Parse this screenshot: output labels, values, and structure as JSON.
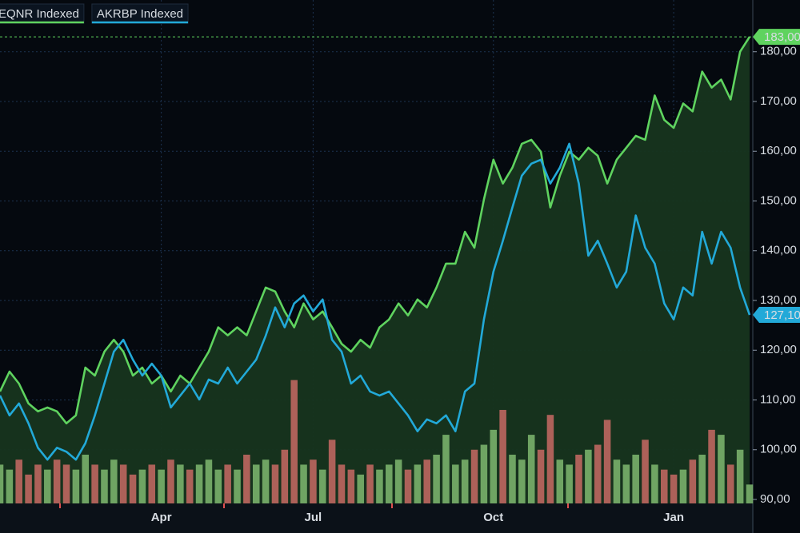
{
  "chart_data": {
    "type": "line",
    "categories": [
      null,
      null,
      null,
      null,
      null,
      null,
      null,
      null,
      null,
      null,
      null,
      null,
      null,
      null,
      null,
      null,
      null,
      "Apr",
      null,
      null,
      null,
      null,
      null,
      null,
      null,
      null,
      null,
      null,
      null,
      null,
      null,
      null,
      null,
      "Jul",
      null,
      null,
      null,
      null,
      null,
      null,
      null,
      null,
      null,
      null,
      null,
      null,
      null,
      null,
      null,
      null,
      null,
      null,
      "Oct",
      null,
      null,
      null,
      null,
      null,
      null,
      null,
      null,
      null,
      null,
      null,
      null,
      null,
      null,
      null,
      null,
      null,
      null,
      "Jan",
      null,
      null,
      null,
      null,
      null,
      null,
      null,
      null
    ],
    "series": [
      {
        "name": "EQNR  Indexed",
        "color": "#5fd35f",
        "fill": "#17351f",
        "values": [
          111.7,
          115.7,
          113.3,
          109.3,
          107.7,
          108.5,
          107.7,
          105.3,
          106.9,
          116.5,
          114.9,
          119.7,
          122.1,
          119.7,
          114.9,
          116.5,
          113.3,
          114.9,
          111.7,
          114.9,
          113.3,
          116.5,
          119.7,
          124.6,
          123.0,
          124.6,
          123.0,
          127.8,
          132.6,
          131.8,
          127.8,
          124.6,
          129.4,
          126.2,
          127.8,
          124.6,
          121.3,
          119.7,
          122.1,
          120.5,
          124.6,
          126.2,
          129.4,
          127.0,
          130.2,
          128.6,
          132.6,
          137.4,
          137.4,
          143.8,
          140.6,
          150.3,
          158.3,
          153.5,
          156.7,
          161.5,
          162.3,
          159.9,
          148.7,
          155.1,
          159.9,
          158.3,
          160.7,
          159.1,
          153.5,
          158.3,
          160.7,
          163.1,
          162.3,
          171.2,
          166.3,
          164.7,
          169.6,
          168.0,
          176.0,
          172.8,
          174.4,
          170.4,
          180.0,
          183
        ],
        "last_label": "183,00"
      },
      {
        "name": "AKRBP Indexed",
        "color": "#22a9d8",
        "values": [
          110.9,
          106.9,
          109.3,
          105.3,
          100.4,
          98.0,
          100.4,
          99.6,
          98.0,
          101.3,
          106.9,
          113.3,
          119.7,
          122.1,
          118.1,
          114.9,
          117.3,
          114.9,
          108.5,
          110.9,
          113.3,
          110.1,
          114.1,
          113.3,
          116.5,
          113.3,
          115.7,
          118.1,
          122.9,
          128.6,
          124.6,
          129.4,
          131.0,
          127.8,
          130.2,
          122.1,
          119.7,
          113.3,
          114.9,
          111.7,
          110.9,
          111.7,
          109.3,
          106.9,
          103.7,
          106.1,
          105.3,
          106.9,
          103.7,
          111.7,
          113.3,
          126.2,
          135.8,
          142.0,
          148.7,
          155.1,
          157.5,
          158.3,
          153.5,
          156.7,
          161.5,
          153.5,
          139.0,
          142.0,
          137.4,
          132.6,
          135.8,
          147.1,
          140.6,
          137.4,
          129.4,
          126.2,
          132.6,
          131.0,
          143.8,
          137.4,
          143.8,
          140.6,
          132.6,
          127.1
        ],
        "last_label": "127,10"
      }
    ],
    "volume": {
      "up_color": "#7fb870",
      "down_color": "#c86a64",
      "values": [
        97,
        96,
        98,
        95,
        97,
        96,
        98,
        97,
        96,
        99,
        97,
        96,
        98,
        97,
        95,
        96,
        97,
        96,
        98,
        97,
        96,
        97,
        98,
        96,
        97,
        96,
        99,
        97,
        98,
        97,
        100,
        114,
        97,
        98,
        96,
        102,
        97,
        96,
        95,
        97,
        96,
        97,
        98,
        96,
        97,
        98,
        99,
        103,
        97,
        98,
        100,
        101,
        104,
        108,
        99,
        98,
        103,
        100,
        107,
        98,
        97,
        99,
        100,
        101,
        106,
        98,
        97,
        99,
        102,
        97,
        96,
        95,
        96,
        98,
        99,
        104,
        103,
        97,
        100,
        93
      ]
    },
    "ylim": [
      89.2,
      190.4
    ],
    "yticks": [
      {
        "value": 90,
        "label": "90,00"
      },
      {
        "value": 100,
        "label": "100,00"
      },
      {
        "value": 110,
        "label": "110,00"
      },
      {
        "value": 120,
        "label": "120,00"
      },
      {
        "value": 130,
        "label": "130,00"
      },
      {
        "value": 140,
        "label": "140,00"
      },
      {
        "value": 150,
        "label": "150,00"
      },
      {
        "value": 160,
        "label": "160,00"
      },
      {
        "value": 170,
        "label": "170,00"
      },
      {
        "value": 180,
        "label": "180,00"
      }
    ],
    "grid": true,
    "legend": "top-left"
  }
}
